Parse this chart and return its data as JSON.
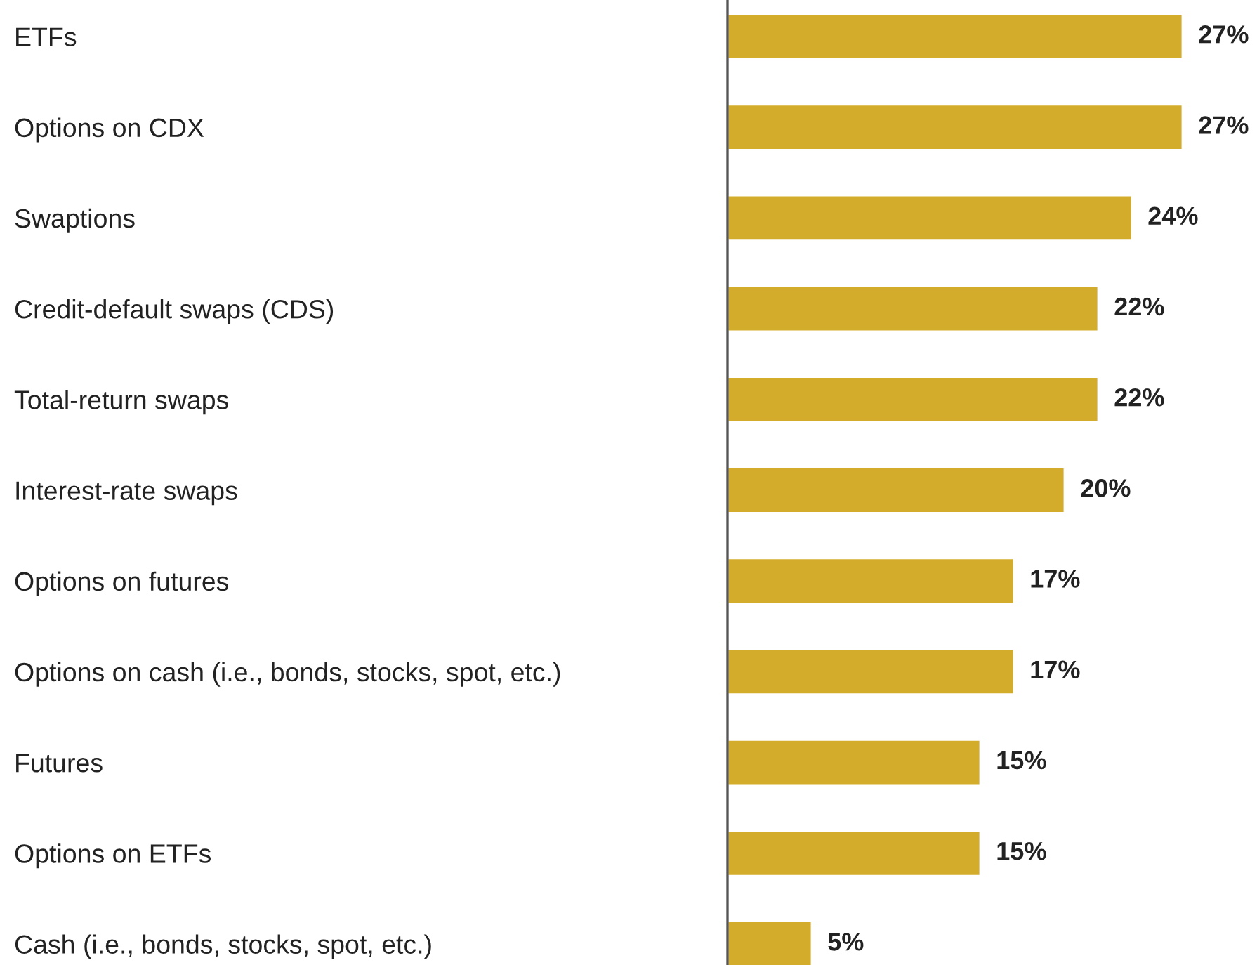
{
  "chart_data": {
    "type": "bar",
    "orientation": "horizontal",
    "categories": [
      "ETFs",
      "Options on CDX",
      "Swaptions",
      "Credit-default swaps (CDS)",
      "Total-return swaps",
      "Interest-rate swaps",
      "Options on futures",
      "Options on cash (i.e., bonds, stocks, spot, etc.)",
      "Futures",
      "Options on ETFs",
      "Cash (i.e., bonds, stocks, spot, etc.)"
    ],
    "values": [
      27,
      27,
      24,
      22,
      22,
      20,
      17,
      17,
      15,
      15,
      5
    ],
    "value_labels": [
      "27%",
      "27%",
      "24%",
      "22%",
      "22%",
      "20%",
      "17%",
      "17%",
      "15%",
      "15%",
      "5%"
    ],
    "color": "#d4ac2b",
    "tick_labels": "y",
    "grid": false,
    "legend": false
  }
}
